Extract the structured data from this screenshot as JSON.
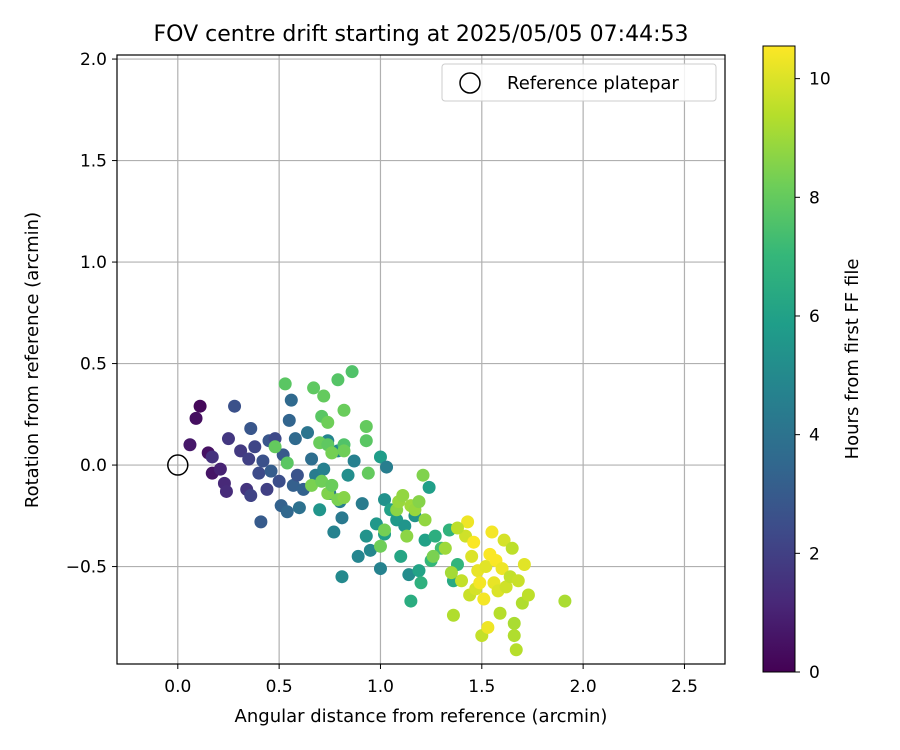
{
  "chart_data": {
    "type": "scatter",
    "title": "FOV centre drift starting at 2025/05/05 07:44:53",
    "xlabel": "Angular distance from reference (arcmin)",
    "ylabel": "Rotation from reference (arcmin)",
    "xlim": [
      -0.3,
      2.7
    ],
    "ylim": [
      -0.98,
      2.02
    ],
    "xticks": [
      0.0,
      0.5,
      1.0,
      1.5,
      2.0,
      2.5
    ],
    "xtick_labels": [
      "0.0",
      "0.5",
      "1.0",
      "1.5",
      "2.0",
      "2.5"
    ],
    "yticks": [
      -0.5,
      0.0,
      0.5,
      1.0,
      1.5,
      2.0
    ],
    "ytick_labels": [
      "−0.5",
      "0.0",
      "0.5",
      "1.0",
      "1.5",
      "2.0"
    ],
    "grid": true,
    "colormap": "viridis",
    "colorbar": {
      "label": "Hours from first FF file",
      "range": [
        0,
        10.55
      ],
      "ticks": [
        0,
        2,
        4,
        6,
        8,
        10
      ],
      "tick_labels": [
        "0",
        "2",
        "4",
        "6",
        "8",
        "10"
      ]
    },
    "legend": {
      "placement": "top-right",
      "entries": [
        "Reference platepar"
      ]
    },
    "reference_point": {
      "x": 0.0,
      "y": 0.0,
      "marker": "open-circle"
    },
    "points": [
      {
        "x": 0.11,
        "y": 0.29,
        "h": 0.2
      },
      {
        "x": 0.09,
        "y": 0.23,
        "h": 0.4
      },
      {
        "x": 0.15,
        "y": 0.06,
        "h": 0.5
      },
      {
        "x": 0.06,
        "y": 0.1,
        "h": 0.7
      },
      {
        "x": 0.17,
        "y": -0.04,
        "h": 0.6
      },
      {
        "x": 0.21,
        "y": -0.02,
        "h": 1.0
      },
      {
        "x": 0.23,
        "y": -0.09,
        "h": 1.2
      },
      {
        "x": 0.24,
        "y": -0.13,
        "h": 1.3
      },
      {
        "x": 0.17,
        "y": 0.04,
        "h": 1.5
      },
      {
        "x": 0.25,
        "y": 0.13,
        "h": 1.7
      },
      {
        "x": 0.28,
        "y": 0.29,
        "h": 2.6
      },
      {
        "x": 0.31,
        "y": 0.07,
        "h": 1.8
      },
      {
        "x": 0.35,
        "y": 0.03,
        "h": 2.0
      },
      {
        "x": 0.36,
        "y": 0.18,
        "h": 2.8
      },
      {
        "x": 0.38,
        "y": 0.09,
        "h": 2.2
      },
      {
        "x": 0.34,
        "y": -0.12,
        "h": 1.6
      },
      {
        "x": 0.36,
        "y": -0.15,
        "h": 2.1
      },
      {
        "x": 0.4,
        "y": -0.04,
        "h": 2.4
      },
      {
        "x": 0.42,
        "y": 0.02,
        "h": 2.6
      },
      {
        "x": 0.41,
        "y": -0.28,
        "h": 3.0
      },
      {
        "x": 0.45,
        "y": 0.12,
        "h": 2.8
      },
      {
        "x": 0.46,
        "y": -0.03,
        "h": 3.1
      },
      {
        "x": 0.44,
        "y": -0.12,
        "h": 2.0
      },
      {
        "x": 0.48,
        "y": 0.13,
        "h": 2.3
      },
      {
        "x": 0.5,
        "y": -0.08,
        "h": 2.5
      },
      {
        "x": 0.51,
        "y": -0.2,
        "h": 3.3
      },
      {
        "x": 0.52,
        "y": 0.05,
        "h": 2.9
      },
      {
        "x": 0.54,
        "y": -0.23,
        "h": 3.5
      },
      {
        "x": 0.55,
        "y": 0.22,
        "h": 3.4
      },
      {
        "x": 0.56,
        "y": 0.32,
        "h": 3.6
      },
      {
        "x": 0.57,
        "y": -0.1,
        "h": 3.2
      },
      {
        "x": 0.58,
        "y": 0.13,
        "h": 3.6
      },
      {
        "x": 0.59,
        "y": -0.05,
        "h": 2.7
      },
      {
        "x": 0.6,
        "y": -0.21,
        "h": 3.9
      },
      {
        "x": 0.62,
        "y": -0.12,
        "h": 3.3
      },
      {
        "x": 0.64,
        "y": 0.16,
        "h": 4.1
      },
      {
        "x": 0.66,
        "y": 0.03,
        "h": 3.8
      },
      {
        "x": 0.68,
        "y": -0.05,
        "h": 4.4
      },
      {
        "x": 0.7,
        "y": -0.22,
        "h": 5.5
      },
      {
        "x": 0.72,
        "y": -0.02,
        "h": 4.6
      },
      {
        "x": 0.74,
        "y": 0.12,
        "h": 4.8
      },
      {
        "x": 0.75,
        "y": -0.14,
        "h": 4.2
      },
      {
        "x": 0.77,
        "y": -0.33,
        "h": 4.7
      },
      {
        "x": 0.79,
        "y": 0.07,
        "h": 4.9
      },
      {
        "x": 0.8,
        "y": -0.18,
        "h": 4.5
      },
      {
        "x": 0.81,
        "y": -0.26,
        "h": 4.3
      },
      {
        "x": 0.81,
        "y": -0.55,
        "h": 5.0
      },
      {
        "x": 0.84,
        "y": -0.05,
        "h": 5.2
      },
      {
        "x": 0.87,
        "y": 0.02,
        "h": 4.6
      },
      {
        "x": 0.89,
        "y": -0.45,
        "h": 4.8
      },
      {
        "x": 0.91,
        "y": -0.19,
        "h": 4.4
      },
      {
        "x": 0.93,
        "y": -0.35,
        "h": 5.4
      },
      {
        "x": 0.95,
        "y": -0.42,
        "h": 4.9
      },
      {
        "x": 0.98,
        "y": -0.29,
        "h": 5.6
      },
      {
        "x": 1.0,
        "y": 0.04,
        "h": 5.8
      },
      {
        "x": 1.0,
        "y": -0.51,
        "h": 4.7
      },
      {
        "x": 1.02,
        "y": -0.17,
        "h": 5.3
      },
      {
        "x": 1.02,
        "y": -0.34,
        "h": 5.9
      },
      {
        "x": 1.03,
        "y": -0.01,
        "h": 4.5
      },
      {
        "x": 1.05,
        "y": -0.22,
        "h": 6.0
      },
      {
        "x": 1.08,
        "y": -0.27,
        "h": 5.7
      },
      {
        "x": 1.1,
        "y": -0.45,
        "h": 6.2
      },
      {
        "x": 1.12,
        "y": -0.3,
        "h": 5.5
      },
      {
        "x": 1.14,
        "y": -0.54,
        "h": 5.1
      },
      {
        "x": 1.15,
        "y": -0.67,
        "h": 6.5
      },
      {
        "x": 1.17,
        "y": -0.25,
        "h": 5.4
      },
      {
        "x": 1.19,
        "y": -0.52,
        "h": 6.1
      },
      {
        "x": 1.2,
        "y": -0.58,
        "h": 6.7
      },
      {
        "x": 1.22,
        "y": -0.37,
        "h": 6.0
      },
      {
        "x": 1.24,
        "y": -0.11,
        "h": 5.9
      },
      {
        "x": 1.25,
        "y": -0.47,
        "h": 7.0
      },
      {
        "x": 1.27,
        "y": -0.35,
        "h": 6.6
      },
      {
        "x": 1.3,
        "y": -0.41,
        "h": 7.3
      },
      {
        "x": 1.34,
        "y": -0.32,
        "h": 6.8
      },
      {
        "x": 1.36,
        "y": -0.57,
        "h": 6.4
      },
      {
        "x": 1.38,
        "y": -0.49,
        "h": 6.9
      },
      {
        "x": 0.53,
        "y": 0.4,
        "h": 7.8
      },
      {
        "x": 0.67,
        "y": 0.38,
        "h": 7.9
      },
      {
        "x": 0.72,
        "y": 0.34,
        "h": 8.0
      },
      {
        "x": 0.79,
        "y": 0.42,
        "h": 7.7
      },
      {
        "x": 0.86,
        "y": 0.46,
        "h": 7.6
      },
      {
        "x": 0.82,
        "y": 0.27,
        "h": 8.1
      },
      {
        "x": 0.71,
        "y": 0.24,
        "h": 7.8
      },
      {
        "x": 0.74,
        "y": 0.21,
        "h": 8.2
      },
      {
        "x": 0.48,
        "y": 0.09,
        "h": 8.0
      },
      {
        "x": 0.7,
        "y": 0.11,
        "h": 8.1
      },
      {
        "x": 0.74,
        "y": 0.1,
        "h": 7.9
      },
      {
        "x": 0.76,
        "y": 0.06,
        "h": 8.3
      },
      {
        "x": 0.82,
        "y": 0.1,
        "h": 7.6
      },
      {
        "x": 0.82,
        "y": 0.07,
        "h": 8.2
      },
      {
        "x": 0.54,
        "y": 0.01,
        "h": 7.8
      },
      {
        "x": 0.93,
        "y": 0.19,
        "h": 8.0
      },
      {
        "x": 0.93,
        "y": 0.12,
        "h": 7.8
      },
      {
        "x": 0.94,
        "y": -0.04,
        "h": 8.0
      },
      {
        "x": 0.66,
        "y": -0.1,
        "h": 8.4
      },
      {
        "x": 0.71,
        "y": -0.08,
        "h": 8.2
      },
      {
        "x": 0.74,
        "y": -0.14,
        "h": 8.5
      },
      {
        "x": 0.76,
        "y": -0.1,
        "h": 8.1
      },
      {
        "x": 0.79,
        "y": -0.17,
        "h": 8.4
      },
      {
        "x": 0.82,
        "y": -0.16,
        "h": 8.6
      },
      {
        "x": 1.0,
        "y": -0.4,
        "h": 8.2
      },
      {
        "x": 1.02,
        "y": -0.32,
        "h": 8.3
      },
      {
        "x": 1.08,
        "y": -0.22,
        "h": 8.7
      },
      {
        "x": 1.09,
        "y": -0.18,
        "h": 8.9
      },
      {
        "x": 1.11,
        "y": -0.15,
        "h": 8.8
      },
      {
        "x": 1.13,
        "y": -0.35,
        "h": 8.7
      },
      {
        "x": 1.15,
        "y": -0.2,
        "h": 9.0
      },
      {
        "x": 1.17,
        "y": -0.22,
        "h": 8.9
      },
      {
        "x": 1.19,
        "y": -0.18,
        "h": 8.6
      },
      {
        "x": 1.21,
        "y": -0.05,
        "h": 8.5
      },
      {
        "x": 1.22,
        "y": -0.27,
        "h": 8.8
      },
      {
        "x": 1.26,
        "y": -0.45,
        "h": 8.4
      },
      {
        "x": 1.32,
        "y": -0.41,
        "h": 9.0
      },
      {
        "x": 1.35,
        "y": -0.53,
        "h": 9.1
      },
      {
        "x": 1.36,
        "y": -0.74,
        "h": 9.3
      },
      {
        "x": 1.4,
        "y": -0.57,
        "h": 9.6
      },
      {
        "x": 1.42,
        "y": -0.35,
        "h": 9.8
      },
      {
        "x": 1.43,
        "y": -0.28,
        "h": 10.3
      },
      {
        "x": 1.44,
        "y": -0.64,
        "h": 9.7
      },
      {
        "x": 1.45,
        "y": -0.45,
        "h": 10.0
      },
      {
        "x": 1.47,
        "y": -0.61,
        "h": 9.9
      },
      {
        "x": 1.48,
        "y": -0.52,
        "h": 10.2
      },
      {
        "x": 1.5,
        "y": -0.84,
        "h": 9.6
      },
      {
        "x": 1.51,
        "y": -0.66,
        "h": 10.4
      },
      {
        "x": 1.52,
        "y": -0.5,
        "h": 10.1
      },
      {
        "x": 1.53,
        "y": -0.8,
        "h": 10.3
      },
      {
        "x": 1.54,
        "y": -0.44,
        "h": 10.5
      },
      {
        "x": 1.55,
        "y": -0.33,
        "h": 10.4
      },
      {
        "x": 1.56,
        "y": -0.58,
        "h": 10.2
      },
      {
        "x": 1.57,
        "y": -0.47,
        "h": 10.5
      },
      {
        "x": 1.58,
        "y": -0.62,
        "h": 10.0
      },
      {
        "x": 1.59,
        "y": -0.73,
        "h": 9.4
      },
      {
        "x": 1.6,
        "y": -0.51,
        "h": 10.3
      },
      {
        "x": 1.61,
        "y": -0.37,
        "h": 9.9
      },
      {
        "x": 1.62,
        "y": -0.6,
        "h": 9.8
      },
      {
        "x": 1.64,
        "y": -0.55,
        "h": 9.6
      },
      {
        "x": 1.65,
        "y": -0.41,
        "h": 9.5
      },
      {
        "x": 1.66,
        "y": -0.78,
        "h": 9.2
      },
      {
        "x": 1.66,
        "y": -0.84,
        "h": 9.3
      },
      {
        "x": 1.67,
        "y": -0.91,
        "h": 9.4
      },
      {
        "x": 1.68,
        "y": -0.57,
        "h": 9.7
      },
      {
        "x": 1.7,
        "y": -0.68,
        "h": 9.3
      },
      {
        "x": 1.71,
        "y": -0.49,
        "h": 10.1
      },
      {
        "x": 1.73,
        "y": -0.64,
        "h": 9.5
      },
      {
        "x": 1.91,
        "y": -0.67,
        "h": 9.2
      },
      {
        "x": 1.38,
        "y": -0.31,
        "h": 9.5
      },
      {
        "x": 1.46,
        "y": -0.38,
        "h": 10.5
      },
      {
        "x": 1.49,
        "y": -0.58,
        "h": 10.4
      }
    ]
  }
}
